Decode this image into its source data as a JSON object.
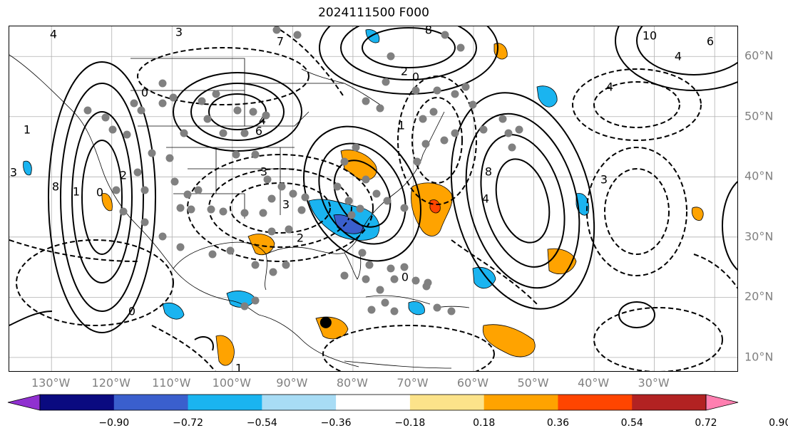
{
  "title": "2024111500 F000",
  "map": {
    "projection": "equirectangular",
    "extent_lon": [
      -137,
      -16
    ],
    "extent_lat": [
      7.5,
      65
    ],
    "lat_labels": [
      "10°N",
      "20°N",
      "30°N",
      "40°N",
      "50°N",
      "60°N"
    ],
    "lon_labels": [
      "130°W",
      "120°W",
      "110°W",
      "100°W",
      "90°W",
      "80°W",
      "70°W",
      "60°W",
      "50°W",
      "40°W",
      "30°W"
    ],
    "grid": true,
    "contour_labels": [
      "4",
      "3",
      "7",
      "8",
      "10",
      "6",
      "4",
      "2",
      "4",
      "0",
      "4",
      "6",
      "8",
      "1",
      "3",
      "2",
      "0",
      "3",
      "8",
      "4",
      "1",
      "3",
      "0",
      "2",
      "1",
      "0",
      "3",
      "0",
      "1"
    ],
    "marker": {
      "type": "black-dot",
      "lon": -84.5,
      "lat": 15.8
    }
  },
  "colorbar": {
    "ticks": [
      "−0.90",
      "−0.72",
      "−0.54",
      "−0.36",
      "−0.18",
      "0.18",
      "0.36",
      "0.54",
      "0.72",
      "0.90"
    ],
    "colors": [
      "#9030d0",
      "#0a0a80",
      "#3a5fcd",
      "#1ab4f0",
      "#a8dcf5",
      "#ffffff",
      "#fce38a",
      "#ffa300",
      "#ff4500",
      "#b22222",
      "#ff7fb0"
    ]
  }
}
